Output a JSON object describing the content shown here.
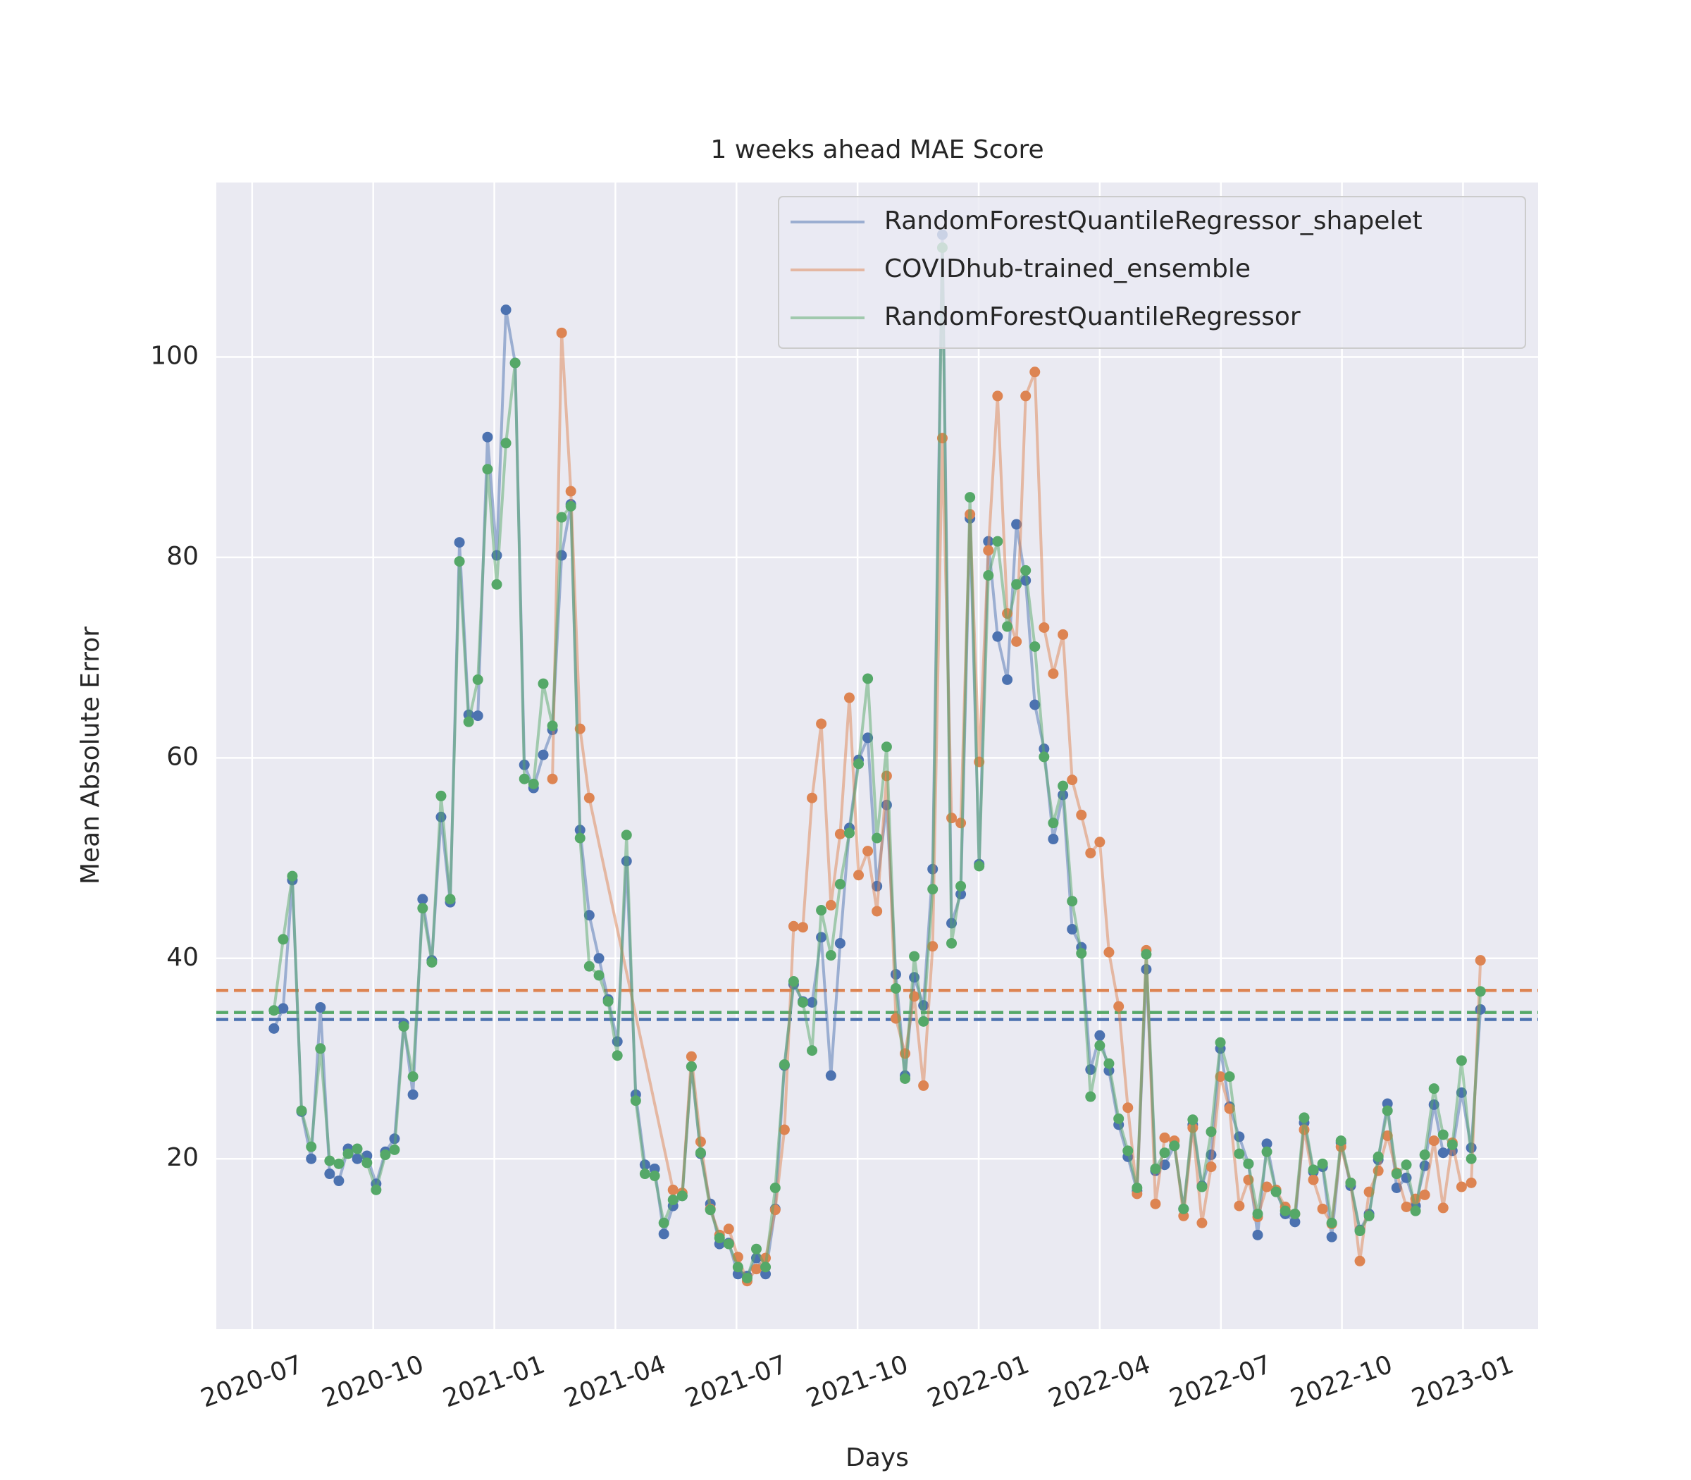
{
  "chart_data": {
    "type": "line",
    "title": "1 weeks ahead MAE Score",
    "x_label": "Days",
    "y_label": "Mean Absolute Error",
    "x": [
      2020.545,
      2020.564,
      2020.583,
      2020.602,
      2020.622,
      2020.641,
      2020.66,
      2020.679,
      2020.698,
      2020.717,
      2020.737,
      2020.756,
      2020.775,
      2020.794,
      2020.813,
      2020.832,
      2020.852,
      2020.871,
      2020.89,
      2020.909,
      2020.928,
      2020.947,
      2020.966,
      2020.986,
      2021.005,
      2021.024,
      2021.043,
      2021.062,
      2021.081,
      2021.101,
      2021.12,
      2021.139,
      2021.158,
      2021.177,
      2021.196,
      2021.216,
      2021.235,
      2021.254,
      2021.273,
      2021.292,
      2021.311,
      2021.331,
      2021.35,
      2021.369,
      2021.388,
      2021.407,
      2021.426,
      2021.446,
      2021.465,
      2021.484,
      2021.503,
      2021.522,
      2021.541,
      2021.56,
      2021.58,
      2021.599,
      2021.618,
      2021.637,
      2021.656,
      2021.675,
      2021.695,
      2021.714,
      2021.733,
      2021.752,
      2021.771,
      2021.79,
      2021.81,
      2021.829,
      2021.848,
      2021.867,
      2021.886,
      2021.905,
      2021.925,
      2021.944,
      2021.963,
      2021.982,
      2022.001,
      2022.02,
      2022.039,
      2022.059,
      2022.078,
      2022.097,
      2022.116,
      2022.135,
      2022.154,
      2022.174,
      2022.193,
      2022.212,
      2022.231,
      2022.25,
      2022.269,
      2022.289,
      2022.308,
      2022.327,
      2022.346,
      2022.365,
      2022.384,
      2022.404,
      2022.423,
      2022.442,
      2022.461,
      2022.48,
      2022.499,
      2022.518,
      2022.538,
      2022.557,
      2022.576,
      2022.595,
      2022.614,
      2022.633,
      2022.653,
      2022.672,
      2022.691,
      2022.71,
      2022.729,
      2022.748,
      2022.768,
      2022.787,
      2022.806,
      2022.825,
      2022.844,
      2022.863,
      2022.883,
      2022.902,
      2022.921,
      2022.94,
      2022.959,
      2022.978,
      2022.997,
      2023.017,
      2023.036
    ],
    "series": [
      {
        "name": "RandomForestQuantileRegressor_shapelet",
        "color": "#4c72b0",
        "mean": 33.9,
        "values": [
          33,
          35,
          47.8,
          24.7,
          20,
          35.1,
          18.5,
          17.8,
          21,
          20,
          20.3,
          17.5,
          20.7,
          22,
          33.5,
          26.4,
          45.9,
          39.8,
          54.1,
          45.6,
          81.5,
          64.3,
          64.2,
          92,
          80.2,
          104.7,
          99.4,
          59.3,
          57,
          60.3,
          62.8,
          80.2,
          85.3,
          52.8,
          44.3,
          40,
          35.9,
          31.7,
          49.7,
          26.4,
          19.4,
          19,
          12.5,
          15.3,
          16.3,
          29.2,
          20.5,
          15.5,
          11.5,
          11.6,
          8.5,
          8.3,
          10.1,
          8.5,
          15,
          29.3,
          37.4,
          35.7,
          35.6,
          42.1,
          28.3,
          41.5,
          53,
          59.8,
          62,
          47.2,
          55.3,
          38.4,
          28.3,
          38.1,
          35.3,
          48.9,
          112.2,
          43.5,
          46.4,
          83.9,
          49.4,
          81.6,
          72.1,
          67.8,
          83.3,
          77.7,
          65.3,
          60.9,
          51.9,
          56.3,
          42.9,
          41.1,
          28.9,
          32.3,
          28.8,
          23.4,
          20.2,
          16.8,
          38.9,
          18.8,
          19.4,
          21.3,
          15,
          23.4,
          17.3,
          20.4,
          31,
          25.2,
          22.2,
          19.5,
          12.4,
          21.5,
          16.8,
          14.5,
          13.7,
          23.6,
          18.7,
          19.2,
          12.2,
          21.6,
          17.3,
          12.9,
          14.5,
          19.9,
          25.5,
          17.1,
          18.1,
          15.3,
          19.3,
          25.4,
          20.6,
          20.8,
          26.6,
          21.1,
          34.9
        ]
      },
      {
        "name": "COVIDhub-trained_ensemble",
        "color": "#dd8452",
        "mean": 36.8,
        "x": [
          2021.12,
          2021.139,
          2021.158,
          2021.177,
          2021.196,
          2021.369,
          2021.388,
          2021.407,
          2021.426,
          2021.446,
          2021.465,
          2021.484,
          2021.503,
          2021.522,
          2021.541,
          2021.56,
          2021.58,
          2021.599,
          2021.618,
          2021.637,
          2021.656,
          2021.675,
          2021.695,
          2021.714,
          2021.733,
          2021.752,
          2021.771,
          2021.79,
          2021.81,
          2021.829,
          2021.848,
          2021.867,
          2021.886,
          2021.905,
          2021.925,
          2021.944,
          2021.963,
          2021.982,
          2022.001,
          2022.02,
          2022.039,
          2022.059,
          2022.078,
          2022.097,
          2022.116,
          2022.135,
          2022.154,
          2022.174,
          2022.193,
          2022.212,
          2022.231,
          2022.25,
          2022.269,
          2022.289,
          2022.308,
          2022.327,
          2022.346,
          2022.365,
          2022.384,
          2022.404,
          2022.423,
          2022.442,
          2022.461,
          2022.48,
          2022.499,
          2022.518,
          2022.538,
          2022.557,
          2022.576,
          2022.595,
          2022.614,
          2022.633,
          2022.653,
          2022.672,
          2022.691,
          2022.71,
          2022.729,
          2022.748,
          2022.768,
          2022.787,
          2022.806,
          2022.825,
          2022.844,
          2022.863,
          2022.883,
          2022.902,
          2022.921,
          2022.94,
          2022.959,
          2022.978,
          2022.997,
          2023.017,
          2023.036
        ],
        "values": [
          57.9,
          102.4,
          86.6,
          62.9,
          56,
          16.9,
          16.6,
          30.2,
          21.7,
          15,
          12.4,
          13,
          10.2,
          7.8,
          9,
          10.1,
          14.9,
          22.9,
          43.2,
          43.1,
          56,
          63.4,
          45.3,
          52.4,
          66,
          48.3,
          50.7,
          44.7,
          58.2,
          34,
          30.5,
          36.2,
          27.3,
          41.2,
          91.9,
          54,
          53.5,
          84.3,
          59.6,
          80.7,
          96.1,
          74.4,
          71.6,
          96.1,
          98.5,
          73,
          68.4,
          72.3,
          57.8,
          54.3,
          50.5,
          51.6,
          40.6,
          35.2,
          25.1,
          16.5,
          40.8,
          15.5,
          22.1,
          21.8,
          14.3,
          23.1,
          13.6,
          19.2,
          28.2,
          25,
          15.3,
          17.9,
          14.2,
          17.2,
          16.9,
          15.2,
          14.5,
          22.9,
          17.9,
          15,
          13.5,
          21.2,
          17.6,
          9.8,
          16.7,
          18.8,
          22.3,
          18.6,
          15.2,
          16,
          16.4,
          21.8,
          15.1,
          21.6,
          17.2,
          17.6,
          39.8
        ]
      },
      {
        "name": "RandomForestQuantileRegressor",
        "color": "#55a868",
        "mean": 34.6,
        "values": [
          34.8,
          41.9,
          48.2,
          24.8,
          21.2,
          31,
          19.8,
          19.5,
          20.5,
          21,
          19.6,
          16.9,
          20.4,
          20.9,
          33.2,
          28.2,
          45,
          39.6,
          56.2,
          45.9,
          79.6,
          63.6,
          67.8,
          88.8,
          77.3,
          91.4,
          99.4,
          57.9,
          57.4,
          67.4,
          63.2,
          84,
          85.1,
          52,
          39.2,
          38.3,
          35.7,
          30.3,
          52.3,
          25.8,
          18.5,
          18.3,
          13.6,
          15.9,
          16.3,
          29.2,
          20.6,
          14.9,
          12.1,
          11.5,
          9.2,
          8.1,
          11,
          9.2,
          17.1,
          29.4,
          37.7,
          35.6,
          30.8,
          44.8,
          40.3,
          47.4,
          52.5,
          59.4,
          67.9,
          52,
          61.1,
          37,
          28,
          40.2,
          33.7,
          46.9,
          110.9,
          41.5,
          47.2,
          86,
          49.2,
          78.2,
          81.6,
          73.1,
          77.3,
          78.7,
          71.1,
          60.1,
          53.5,
          57.2,
          45.7,
          40.5,
          26.2,
          31.3,
          29.5,
          24,
          20.8,
          17.1,
          40.4,
          19,
          20.6,
          21.3,
          15,
          23.9,
          17.2,
          22.7,
          31.6,
          28.2,
          20.5,
          19.5,
          14.5,
          20.7,
          16.7,
          14.8,
          14.5,
          24.1,
          18.9,
          19.5,
          13.6,
          21.8,
          17.6,
          12.8,
          14.3,
          20.2,
          24.8,
          18.5,
          19.4,
          14.8,
          20.4,
          27,
          22.4,
          21.4,
          29.8,
          20,
          36.7
        ]
      }
    ],
    "xlim": [
      2020.426,
      2023.155
    ],
    "xticks": [
      {
        "value": 2020.5,
        "label": "2020-07"
      },
      {
        "value": 2020.75,
        "label": "2020-10"
      },
      {
        "value": 2021.0,
        "label": "2021-01"
      },
      {
        "value": 2021.25,
        "label": "2021-04"
      },
      {
        "value": 2021.5,
        "label": "2021-07"
      },
      {
        "value": 2021.75,
        "label": "2021-10"
      },
      {
        "value": 2022.0,
        "label": "2022-01"
      },
      {
        "value": 2022.25,
        "label": "2022-04"
      },
      {
        "value": 2022.5,
        "label": "2022-07"
      },
      {
        "value": 2022.75,
        "label": "2022-10"
      },
      {
        "value": 2023.0,
        "label": "2023-01"
      }
    ],
    "ylim": [
      3,
      117.4
    ],
    "yticks": [
      20,
      40,
      60,
      80,
      100
    ],
    "grid": true,
    "legend": "upper right"
  }
}
